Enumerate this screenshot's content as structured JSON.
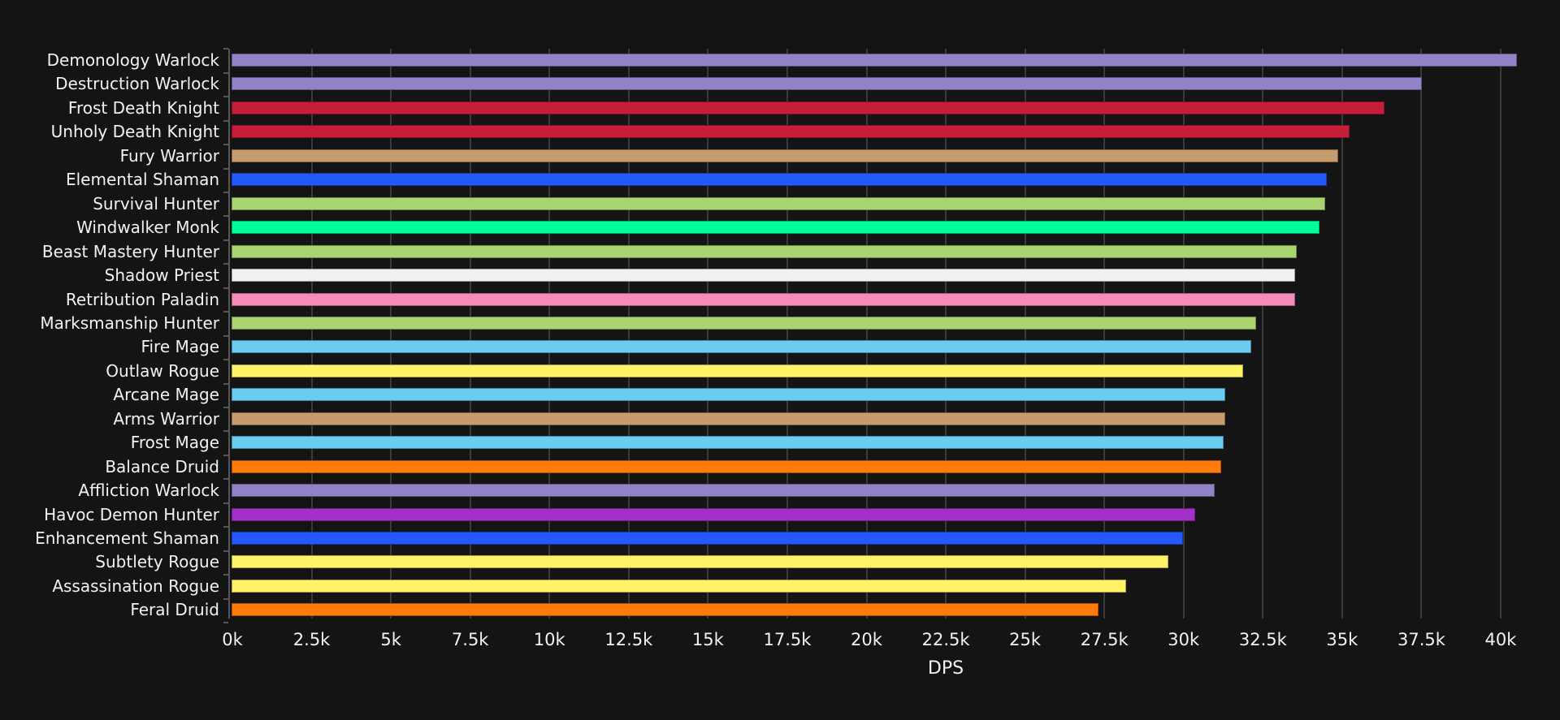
{
  "chart_data": {
    "type": "bar",
    "orientation": "horizontal",
    "title": "",
    "xlabel": "DPS",
    "ylabel": "",
    "xlim": [
      0,
      41000
    ],
    "grid": true,
    "legend": null,
    "x_ticks": [
      "0k",
      "2.5k",
      "5k",
      "7.5k",
      "10k",
      "12.5k",
      "15k",
      "17.5k",
      "20k",
      "22.5k",
      "25k",
      "27.5k",
      "30k",
      "32.5k",
      "35k",
      "37.5k",
      "40k"
    ],
    "x_tick_values": [
      0,
      2500,
      5000,
      7500,
      10000,
      12500,
      15000,
      17500,
      20000,
      22500,
      25000,
      27500,
      30000,
      32500,
      35000,
      37500,
      40000
    ],
    "categories": [
      "Demonology Warlock",
      "Destruction Warlock",
      "Frost Death Knight",
      "Unholy Death Knight",
      "Fury Warrior",
      "Elemental Shaman",
      "Survival Hunter",
      "Windwalker Monk",
      "Beast Mastery Hunter",
      "Shadow Priest",
      "Retribution Paladin",
      "Marksmanship Hunter",
      "Fire Mage",
      "Outlaw Rogue",
      "Arcane Mage",
      "Arms Warrior",
      "Frost Mage",
      "Balance Druid",
      "Affliction Warlock",
      "Havoc Demon Hunter",
      "Enhancement Shaman",
      "Subtlety Rogue",
      "Assassination Rogue",
      "Feral Druid"
    ],
    "values": [
      40550,
      37550,
      36350,
      35250,
      34900,
      34550,
      34500,
      34300,
      33600,
      33550,
      33550,
      32300,
      32150,
      31900,
      31350,
      31350,
      31300,
      31200,
      31000,
      30400,
      30000,
      29550,
      28200,
      27350
    ],
    "colors": [
      "#9482C9",
      "#9482C9",
      "#C41E3A",
      "#C41E3A",
      "#C69B6D",
      "#2459FF",
      "#AAD372",
      "#00FF98",
      "#AAD372",
      "#F0F0F0",
      "#F48CBA",
      "#AAD372",
      "#69CCF0",
      "#FFF468",
      "#69CCF0",
      "#C69B6D",
      "#69CCF0",
      "#FF7C0A",
      "#9482C9",
      "#A330C9",
      "#2459FF",
      "#FFF468",
      "#FFF468",
      "#FF7C0A"
    ]
  },
  "colors": {
    "background": "#141414",
    "grid": "#3a3a3a",
    "text": "#f2f2f2"
  }
}
